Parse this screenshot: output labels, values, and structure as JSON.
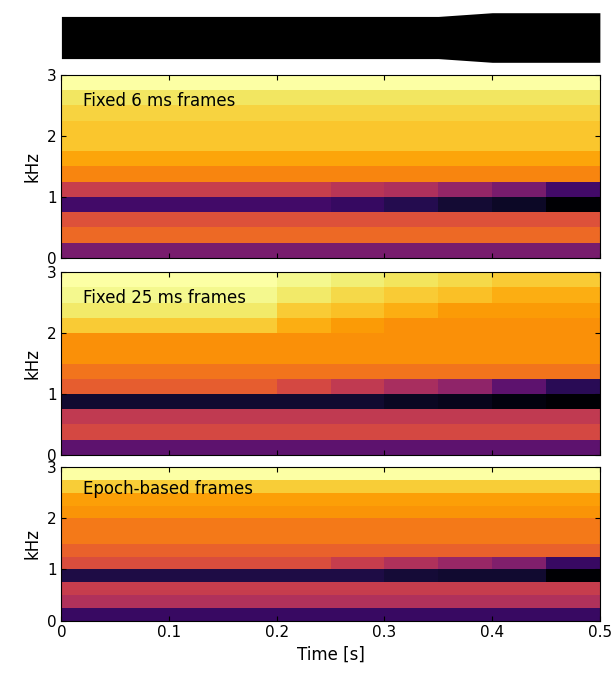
{
  "chart_data": [
    {
      "type": "area",
      "color": "#000000",
      "tick_labels": false,
      "x": [
        0,
        0.05,
        0.1,
        0.15,
        0.2,
        0.25,
        0.3,
        0.35,
        0.4,
        0.45,
        0.5
      ],
      "upper": [
        0.85,
        0.85,
        0.85,
        0.85,
        0.85,
        0.85,
        0.85,
        0.85,
        1.0,
        1.0,
        1.0
      ],
      "lower": [
        -0.85,
        -0.85,
        -0.85,
        -0.85,
        -0.85,
        -0.85,
        -0.85,
        -0.85,
        -1.0,
        -1.0,
        -1.0
      ],
      "xlim": [
        0,
        0.5
      ],
      "ylim": [
        -1.1,
        1.1
      ]
    },
    {
      "type": "heatmap",
      "text": "Fixed 6 ms frames",
      "y_label": "kHz",
      "color": "inferno_r",
      "tick_labels": "y",
      "xlim": [
        0,
        0.5
      ],
      "ylim": [
        0,
        3
      ],
      "xticks": [
        0,
        0.1,
        0.2,
        0.3,
        0.4,
        0.5
      ],
      "yticks": [
        0,
        1,
        2,
        3
      ],
      "cells": [
        [
          0.7,
          0.7,
          0.7,
          0.7,
          0.7,
          0.7,
          0.7,
          0.7,
          0.7,
          0.7
        ],
        [
          0.45,
          0.45,
          0.45,
          0.45,
          0.45,
          0.45,
          0.45,
          0.45,
          0.45,
          0.45
        ],
        [
          0.5,
          0.5,
          0.5,
          0.5,
          0.5,
          0.5,
          0.5,
          0.5,
          0.5,
          0.5
        ],
        [
          0.8,
          0.8,
          0.8,
          0.8,
          0.8,
          0.82,
          0.85,
          0.88,
          0.9,
          0.95
        ],
        [
          0.55,
          0.55,
          0.55,
          0.55,
          0.55,
          0.58,
          0.6,
          0.65,
          0.7,
          0.8
        ],
        [
          0.4,
          0.4,
          0.4,
          0.4,
          0.4,
          0.4,
          0.4,
          0.4,
          0.4,
          0.4
        ],
        [
          0.35,
          0.35,
          0.35,
          0.35,
          0.35,
          0.35,
          0.35,
          0.35,
          0.35,
          0.35
        ],
        [
          0.3,
          0.3,
          0.3,
          0.3,
          0.3,
          0.3,
          0.3,
          0.3,
          0.3,
          0.3
        ],
        [
          0.3,
          0.3,
          0.3,
          0.3,
          0.3,
          0.3,
          0.3,
          0.3,
          0.3,
          0.3
        ],
        [
          0.28,
          0.28,
          0.28,
          0.28,
          0.28,
          0.28,
          0.28,
          0.28,
          0.28,
          0.28
        ],
        [
          0.25,
          0.25,
          0.25,
          0.25,
          0.25,
          0.25,
          0.25,
          0.25,
          0.25,
          0.25
        ],
        [
          0.2,
          0.2,
          0.2,
          0.2,
          0.2,
          0.2,
          0.2,
          0.2,
          0.2,
          0.2
        ]
      ]
    },
    {
      "type": "heatmap",
      "text": "Fixed 25 ms frames",
      "y_label": "kHz",
      "color": "inferno_r",
      "tick_labels": "y",
      "xlim": [
        0,
        0.5
      ],
      "ylim": [
        0,
        3
      ],
      "xticks": [
        0,
        0.1,
        0.2,
        0.3,
        0.4,
        0.5
      ],
      "yticks": [
        0,
        1,
        2,
        3
      ],
      "cells": [
        [
          0.7,
          0.7,
          0.7,
          0.7,
          0.7,
          0.7,
          0.7,
          0.7,
          0.7,
          0.7
        ],
        [
          0.45,
          0.45,
          0.45,
          0.45,
          0.45,
          0.45,
          0.45,
          0.45,
          0.45,
          0.45
        ],
        [
          0.5,
          0.5,
          0.5,
          0.5,
          0.5,
          0.5,
          0.5,
          0.5,
          0.5,
          0.5
        ],
        [
          0.85,
          0.85,
          0.85,
          0.85,
          0.85,
          0.85,
          0.87,
          0.88,
          0.9,
          0.92
        ],
        [
          0.4,
          0.4,
          0.4,
          0.4,
          0.45,
          0.5,
          0.55,
          0.6,
          0.7,
          0.8
        ],
        [
          0.35,
          0.35,
          0.35,
          0.35,
          0.35,
          0.35,
          0.35,
          0.35,
          0.35,
          0.35
        ],
        [
          0.3,
          0.3,
          0.3,
          0.3,
          0.3,
          0.3,
          0.3,
          0.3,
          0.3,
          0.3
        ],
        [
          0.3,
          0.3,
          0.3,
          0.3,
          0.3,
          0.3,
          0.3,
          0.3,
          0.3,
          0.3
        ],
        [
          0.2,
          0.2,
          0.2,
          0.2,
          0.25,
          0.28,
          0.3,
          0.3,
          0.3,
          0.3
        ],
        [
          0.15,
          0.15,
          0.15,
          0.15,
          0.2,
          0.22,
          0.25,
          0.28,
          0.28,
          0.28
        ],
        [
          0.12,
          0.12,
          0.12,
          0.12,
          0.15,
          0.18,
          0.2,
          0.22,
          0.25,
          0.25
        ],
        [
          0.1,
          0.1,
          0.1,
          0.1,
          0.12,
          0.14,
          0.16,
          0.18,
          0.2,
          0.2
        ]
      ]
    },
    {
      "type": "heatmap",
      "text": "Epoch-based frames",
      "y_label": "kHz",
      "x_label": "Time [s]",
      "color": "inferno_r",
      "xlim": [
        0,
        0.5
      ],
      "ylim": [
        0,
        3
      ],
      "xticks": [
        0,
        0.1,
        0.2,
        0.3,
        0.4,
        0.5
      ],
      "yticks": [
        0,
        1,
        2,
        3
      ],
      "cells": [
        [
          0.8,
          0.8,
          0.8,
          0.8,
          0.8,
          0.8,
          0.8,
          0.8,
          0.8,
          0.8
        ],
        [
          0.55,
          0.55,
          0.55,
          0.55,
          0.55,
          0.55,
          0.55,
          0.55,
          0.55,
          0.55
        ],
        [
          0.5,
          0.5,
          0.5,
          0.5,
          0.5,
          0.5,
          0.5,
          0.5,
          0.5,
          0.5
        ],
        [
          0.85,
          0.85,
          0.85,
          0.85,
          0.85,
          0.85,
          0.87,
          0.88,
          0.88,
          0.95
        ],
        [
          0.45,
          0.45,
          0.45,
          0.45,
          0.45,
          0.5,
          0.55,
          0.6,
          0.65,
          0.8
        ],
        [
          0.4,
          0.4,
          0.4,
          0.4,
          0.4,
          0.4,
          0.4,
          0.4,
          0.4,
          0.4
        ],
        [
          0.35,
          0.35,
          0.35,
          0.35,
          0.35,
          0.35,
          0.35,
          0.35,
          0.35,
          0.35
        ],
        [
          0.35,
          0.35,
          0.35,
          0.35,
          0.35,
          0.35,
          0.35,
          0.35,
          0.35,
          0.35
        ],
        [
          0.3,
          0.3,
          0.3,
          0.3,
          0.3,
          0.3,
          0.3,
          0.3,
          0.3,
          0.3
        ],
        [
          0.28,
          0.28,
          0.28,
          0.28,
          0.28,
          0.28,
          0.28,
          0.28,
          0.28,
          0.28
        ],
        [
          0.2,
          0.2,
          0.2,
          0.2,
          0.2,
          0.2,
          0.2,
          0.2,
          0.2,
          0.2
        ],
        [
          0.1,
          0.1,
          0.1,
          0.1,
          0.1,
          0.1,
          0.1,
          0.1,
          0.1,
          0.1
        ]
      ]
    }
  ]
}
